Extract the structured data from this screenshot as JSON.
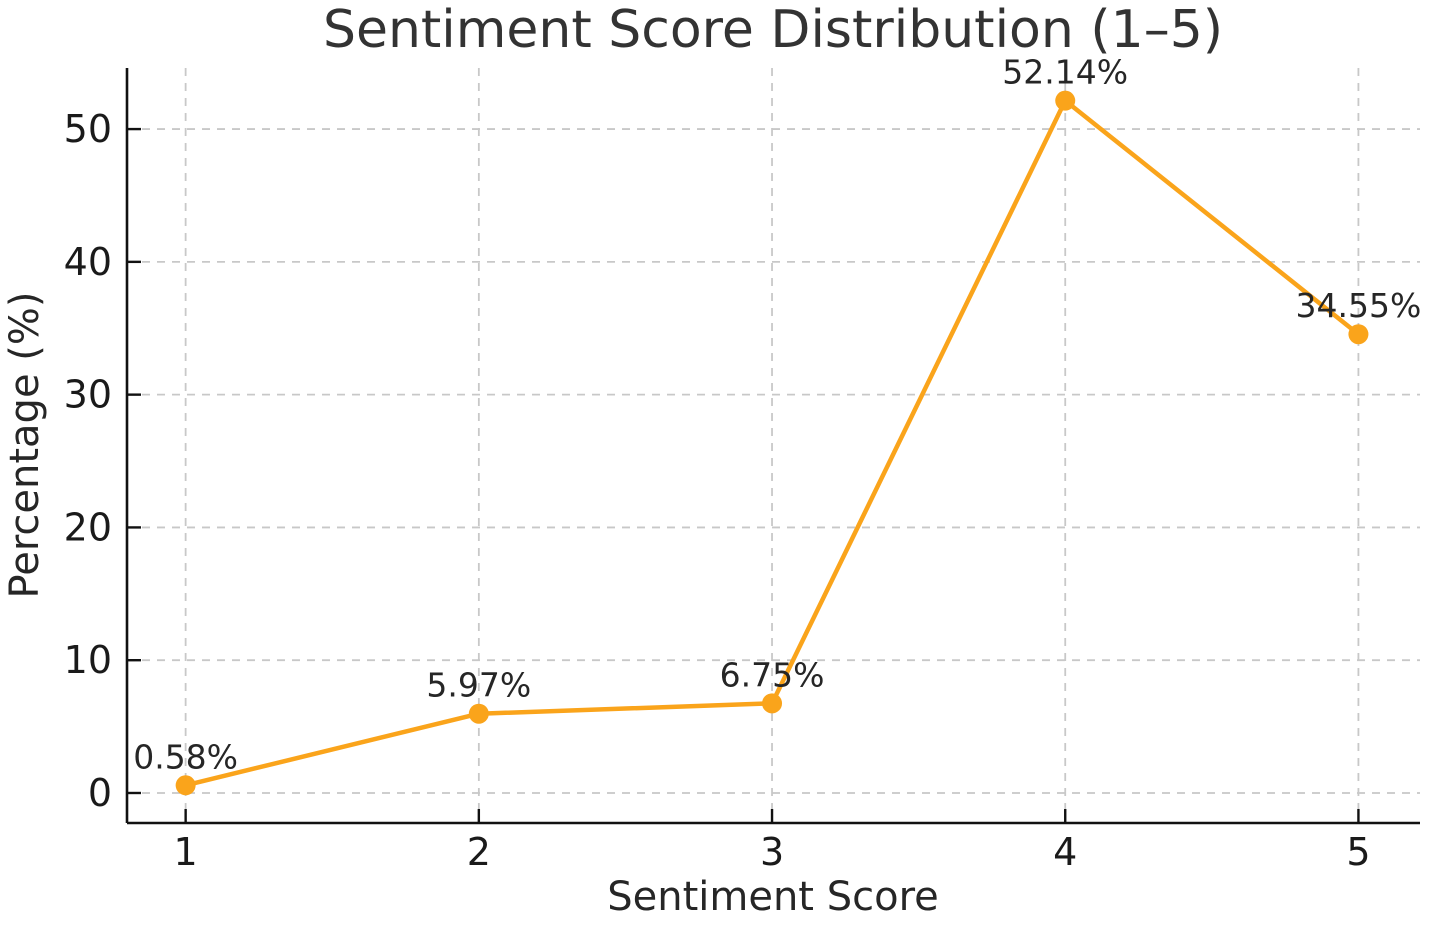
{
  "chart_data": {
    "type": "line",
    "title": "Sentiment Score Distribution (1–5)",
    "xlabel": "Sentiment Score",
    "ylabel": "Percentage (%)",
    "x": [
      1,
      2,
      3,
      4,
      5
    ],
    "values": [
      0.58,
      5.97,
      6.75,
      52.14,
      34.55
    ],
    "point_labels": [
      "0.58%",
      "5.97%",
      "6.75%",
      "52.14%",
      "34.55%"
    ],
    "xticks": [
      1,
      2,
      3,
      4,
      5
    ],
    "xtick_labels": [
      "1",
      "2",
      "3",
      "4",
      "5"
    ],
    "yticks": [
      0,
      10,
      20,
      30,
      40,
      50
    ],
    "ytick_labels": [
      "0",
      "10",
      "20",
      "30",
      "40",
      "50"
    ],
    "xlim": [
      0.8,
      5.21
    ],
    "ylim": [
      -2.26,
      54.6
    ],
    "grid": true,
    "grid_style": "dashed",
    "legend_position": "none",
    "line_color": "#FAA41B",
    "marker_color": "#FAA41B",
    "grid_color": "#C8C8C8",
    "axis_color": "#111111",
    "title_color": "#333333",
    "label_color": "#262626"
  }
}
